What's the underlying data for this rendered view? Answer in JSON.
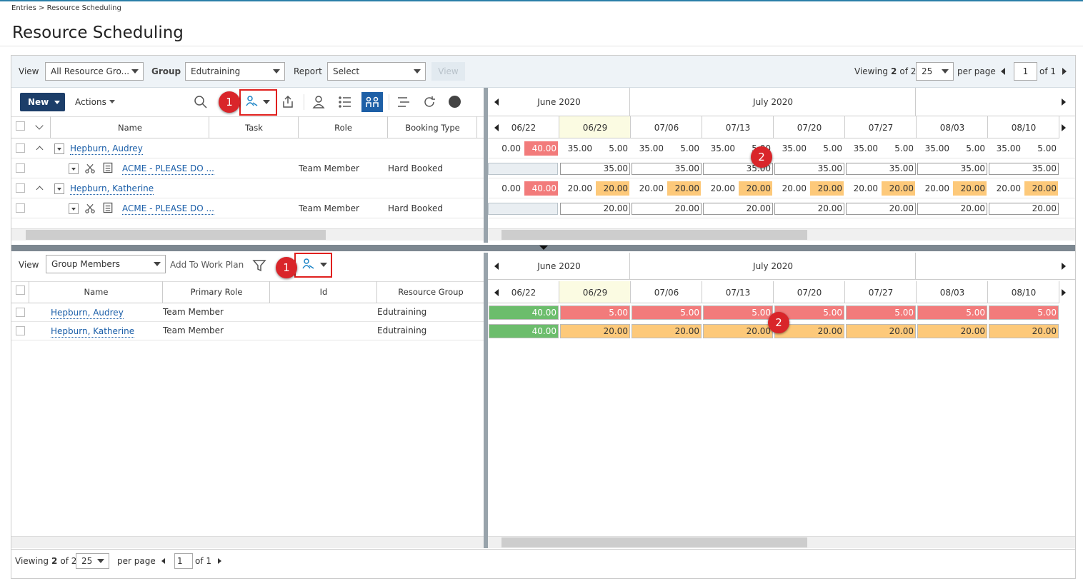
{
  "breadcrumb": "Entries > Resource Scheduling",
  "title": "Resource Scheduling",
  "filter_bar": {
    "view_label": "View",
    "view_value": "All Resource Gro...",
    "group_label": "Group",
    "group_value": "Edutraining",
    "report_label": "Report",
    "report_value": "Select",
    "view_button": "View"
  },
  "top_paging": {
    "viewing": "Viewing",
    "shown": "2",
    "total": "of 2",
    "page_size": "25",
    "per_page": "per page",
    "page": "1",
    "pages": "of 1"
  },
  "upper": {
    "toolbar": {
      "new": "New",
      "actions": "Actions"
    },
    "badges": [
      "1",
      "2"
    ],
    "months": [
      "June 2020",
      "July 2020"
    ],
    "weeks": [
      "06/22",
      "06/29",
      "07/06",
      "07/13",
      "07/20",
      "07/27",
      "08/03",
      "08/10"
    ],
    "columns": [
      "Name",
      "Task",
      "Role",
      "Booking Type"
    ],
    "rows": [
      {
        "kind": "resource",
        "name": "Hepburn, Audrey",
        "first_color": "#f27b7b",
        "cells": [
          [
            "0.00",
            "40.00"
          ],
          [
            "35.00",
            "5.00"
          ],
          [
            "35.00",
            "5.00"
          ],
          [
            "35.00",
            "5.00"
          ],
          [
            "35.00",
            "5.00"
          ],
          [
            "35.00",
            "5.00"
          ],
          [
            "35.00",
            "5.00"
          ],
          [
            "35.00",
            "5.00"
          ]
        ]
      },
      {
        "kind": "assignment",
        "name": "ACME - PLEASE DO ...",
        "role": "Team Member",
        "booking_type": "Hard Booked",
        "cells": [
          "35.00",
          "35.00",
          "35.00",
          "35.00",
          "35.00",
          "35.00",
          "35.00"
        ]
      },
      {
        "kind": "resource",
        "name": "Hepburn, Katherine",
        "first_color": "#f27b7b",
        "rest_color": "#fdc97a",
        "cells": [
          [
            "0.00",
            "40.00"
          ],
          [
            "20.00",
            "20.00"
          ],
          [
            "20.00",
            "20.00"
          ],
          [
            "20.00",
            "20.00"
          ],
          [
            "20.00",
            "20.00"
          ],
          [
            "20.00",
            "20.00"
          ],
          [
            "20.00",
            "20.00"
          ],
          [
            "20.00",
            "20.00"
          ]
        ]
      },
      {
        "kind": "assignment",
        "name": "ACME - PLEASE DO ...",
        "role": "Team Member",
        "booking_type": "Hard Booked",
        "cells": [
          "20.00",
          "20.00",
          "20.00",
          "20.00",
          "20.00",
          "20.00",
          "20.00"
        ]
      }
    ]
  },
  "lower": {
    "view_label": "View",
    "view_value": "Group Members",
    "add_to_work_plan": "Add To Work Plan",
    "badges": [
      "1",
      "2"
    ],
    "months": [
      "June 2020",
      "July 2020"
    ],
    "weeks": [
      "06/22",
      "06/29",
      "07/06",
      "07/13",
      "07/20",
      "07/27",
      "08/03",
      "08/10"
    ],
    "columns": [
      "Name",
      "Primary Role",
      "Id",
      "Resource Group"
    ],
    "rows": [
      {
        "name": "Hepburn, Audrey",
        "primary_role": "Team Member",
        "resource_group": "Edutraining",
        "first_color": "#6cbd6c",
        "rest_color": "#f27b7b",
        "cells": [
          "40.00",
          "5.00",
          "5.00",
          "5.00",
          "5.00",
          "5.00",
          "5.00",
          "5.00"
        ]
      },
      {
        "name": "Hepburn, Katherine",
        "primary_role": "Team Member",
        "resource_group": "Edutraining",
        "first_color": "#6cbd6c",
        "rest_color": "#fdc97a",
        "cells": [
          "40.00",
          "20.00",
          "20.00",
          "20.00",
          "20.00",
          "20.00",
          "20.00",
          "20.00"
        ]
      }
    ]
  },
  "bottom_paging": {
    "viewing": "Viewing",
    "shown": "2",
    "total": "of 2",
    "page_size": "25",
    "per_page": "per page",
    "page": "1",
    "pages": "of 1"
  }
}
